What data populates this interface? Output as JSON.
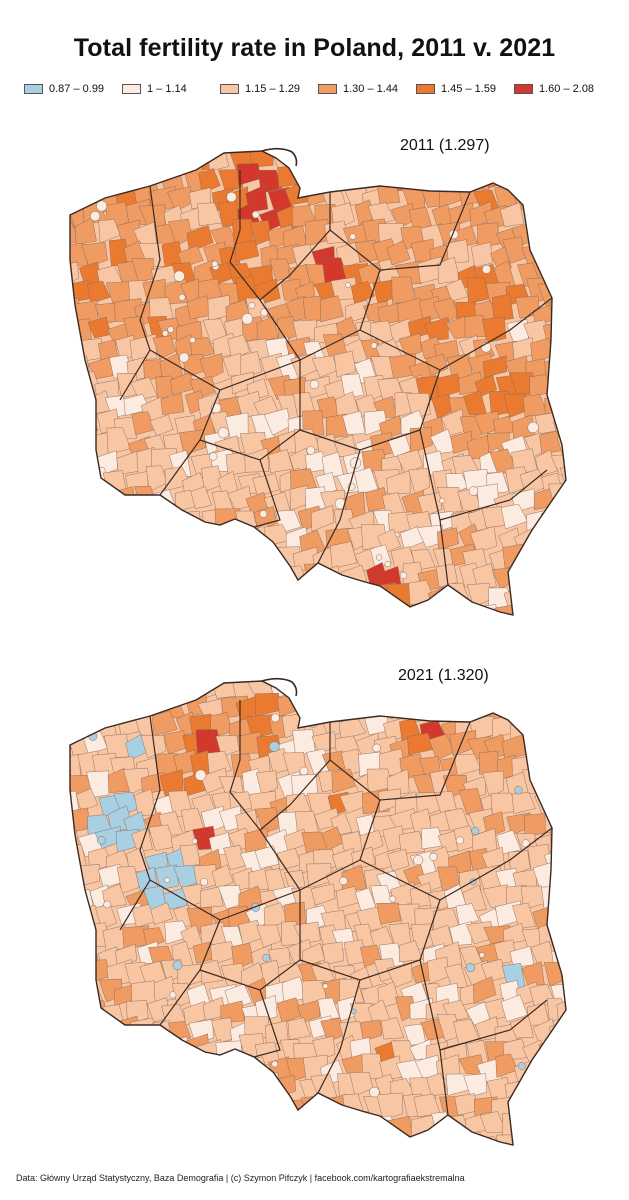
{
  "title": "Total fertility rate in Poland, 2011 v. 2021",
  "legend": [
    {
      "label": "0.87 – 0.99",
      "color": "#a9cfe3"
    },
    {
      "label": "1 – 1.14",
      "color": "#fcebe0"
    },
    {
      "label": "1.15 – 1.29",
      "color": "#f8c6a3"
    },
    {
      "label": "1.30 – 1.44",
      "color": "#ef9b62"
    },
    {
      "label": "1.45 – 1.59",
      "color": "#ea7a30"
    },
    {
      "label": "1.60 – 2.08",
      "color": "#d2382b"
    }
  ],
  "maps": [
    {
      "label": "2011 (1.297)",
      "year": 2011,
      "national_tfr": 1.297
    },
    {
      "label": "2021 (1.320)",
      "year": 2021,
      "national_tfr": 1.32
    }
  ],
  "footer": "Data: Główny Urząd Statystyczny,  Baza Demografia  | (c) Szymon Pifczyk | facebook.com/kartografiaekstremalna",
  "colors": {
    "border": "#3a2a22",
    "district_line": "#8a6a5a",
    "background": "#ffffff"
  }
}
